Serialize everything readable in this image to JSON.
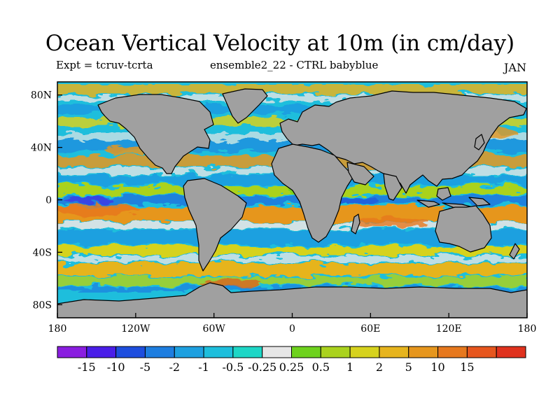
{
  "title": "Ocean Vertical Velocity at 10m (in cm/day)",
  "left_note": "Expt = tcruv-tcrta",
  "center_note": "ensemble2_22 - CTRL babyblue",
  "right_note": "JAN",
  "map": {
    "lon_range": [
      -180,
      180
    ],
    "lat_range": [
      -90,
      90
    ],
    "land_color": "#a0a0a0",
    "lat_ticks": [
      {
        "value": 80,
        "label": "80N"
      },
      {
        "value": 40,
        "label": "40N"
      },
      {
        "value": 0,
        "label": "0"
      },
      {
        "value": -40,
        "label": "40S"
      },
      {
        "value": -80,
        "label": "80S"
      }
    ],
    "lon_ticks": [
      {
        "value": -180,
        "label": "180"
      },
      {
        "value": -120,
        "label": "120W"
      },
      {
        "value": -60,
        "label": "60W"
      },
      {
        "value": 0,
        "label": "0"
      },
      {
        "value": 60,
        "label": "60E"
      },
      {
        "value": 120,
        "label": "120E"
      },
      {
        "value": 180,
        "label": "180"
      }
    ]
  },
  "colorbar": {
    "colors": [
      "#8a1ee0",
      "#4a1ee8",
      "#1e4ede",
      "#1e7ee0",
      "#1ea0e0",
      "#1ebedc",
      "#1ed6c6",
      "#e6e6e6",
      "#6ed21e",
      "#aad21e",
      "#d6d21e",
      "#e6b41e",
      "#e6961e",
      "#e6781e",
      "#e6561e",
      "#e0321e"
    ],
    "labels": [
      "-15",
      "-10",
      "-5",
      "-2",
      "-1",
      "-0.5",
      "-0.25",
      "0.25",
      "0.5",
      "1",
      "2",
      "5",
      "10",
      "15"
    ]
  }
}
